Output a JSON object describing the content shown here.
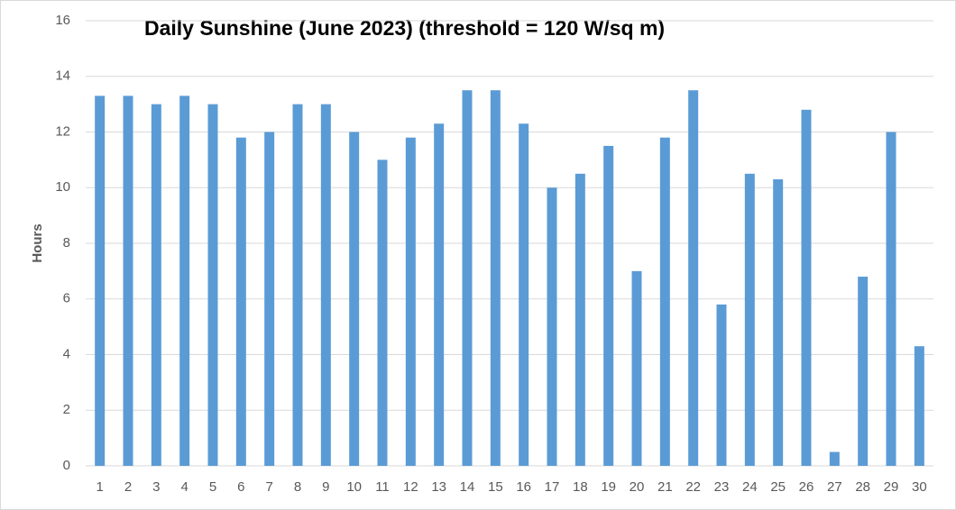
{
  "chart_data": {
    "type": "bar",
    "title": "Daily Sunshine (June 2023) (threshold = 120 W/sq m)",
    "y_label": "Hours",
    "categories": [
      1,
      2,
      3,
      4,
      5,
      6,
      7,
      8,
      9,
      10,
      11,
      12,
      13,
      14,
      15,
      16,
      17,
      18,
      19,
      20,
      21,
      22,
      23,
      24,
      25,
      26,
      27,
      28,
      29,
      30
    ],
    "values": [
      13.3,
      13.3,
      13,
      13.3,
      13,
      11.8,
      12,
      13,
      13,
      12,
      11,
      11.8,
      12.3,
      13.5,
      13.5,
      12.3,
      10,
      10.5,
      11.5,
      7,
      11.8,
      13.5,
      5.8,
      10.5,
      10.3,
      12.8,
      0.5,
      6.8,
      12,
      4.3
    ],
    "color": "#5b9bd5",
    "ylim": [
      0,
      16
    ],
    "yticks": [
      0,
      2,
      4,
      6,
      8,
      10,
      12,
      14,
      16
    ],
    "grid": true
  }
}
